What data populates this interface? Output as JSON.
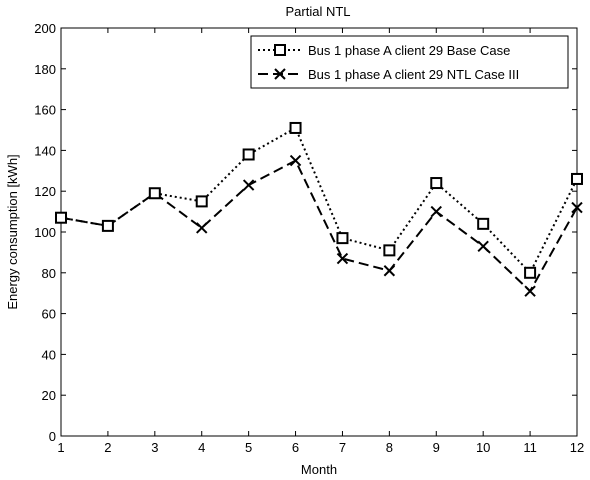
{
  "chart_data": {
    "type": "line",
    "title": "Partial NTL",
    "xlabel": "Month",
    "ylabel": "Energy consumption [kWh]",
    "xlim": [
      1,
      12
    ],
    "ylim": [
      0,
      200
    ],
    "x_ticks": [
      1,
      2,
      3,
      4,
      5,
      6,
      7,
      8,
      9,
      10,
      11,
      12
    ],
    "y_ticks": [
      0,
      20,
      40,
      60,
      80,
      100,
      120,
      140,
      160,
      180,
      200
    ],
    "grid": false,
    "legend_position": "top-right",
    "x": [
      1,
      2,
      3,
      4,
      5,
      6,
      7,
      8,
      9,
      10,
      11,
      12
    ],
    "series": [
      {
        "name": "Bus 1 phase A client 29 Base Case",
        "line_style": "dotted",
        "marker": "square",
        "color": "#000000",
        "values": [
          107,
          103,
          119,
          115,
          138,
          151,
          97,
          91,
          124,
          104,
          80,
          126
        ]
      },
      {
        "name": "Bus 1 phase A client 29 NTL Case III",
        "line_style": "dashed",
        "marker": "x",
        "color": "#000000",
        "values": [
          107,
          103,
          119,
          102,
          123,
          135,
          87,
          81,
          110,
          93,
          71,
          112
        ]
      }
    ]
  }
}
